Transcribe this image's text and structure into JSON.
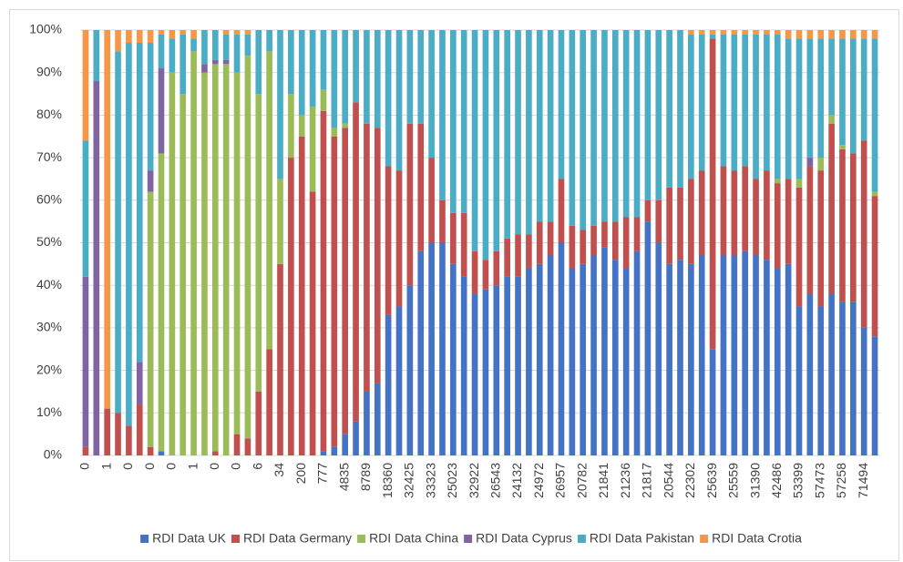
{
  "chart_data": {
    "type": "stacked_bar",
    "categories": [
      "0",
      null,
      "1",
      null,
      "0",
      null,
      "0",
      null,
      "0",
      null,
      "1",
      null,
      "0",
      null,
      "0",
      null,
      "6",
      null,
      "34",
      null,
      "200",
      null,
      "777",
      null,
      "4835",
      null,
      "8789",
      null,
      "18360",
      null,
      "32425",
      null,
      "33323",
      null,
      "25023",
      null,
      "32922",
      null,
      "26543",
      null,
      "24132",
      null,
      "24972",
      null,
      "26957",
      null,
      "20782",
      null,
      "21841",
      null,
      "21236",
      null,
      "21817",
      null,
      "20544",
      null,
      "22302",
      null,
      "25639",
      null,
      "25559",
      null,
      "31390",
      null,
      "42486",
      null,
      "53399",
      null,
      "57473",
      null,
      "57258",
      null,
      "71494",
      null
    ],
    "series": [
      {
        "name": "RDI Data UK",
        "color": "#4472c4",
        "values": [
          0,
          0,
          0,
          0,
          0,
          0,
          0,
          1,
          0,
          0,
          0,
          0,
          0,
          0,
          0,
          0,
          0,
          0,
          0,
          0,
          0,
          0,
          1,
          2,
          5,
          8,
          15,
          17,
          33,
          35,
          40,
          48,
          50,
          50,
          45,
          42,
          38,
          39,
          40,
          42,
          42,
          44,
          45,
          47,
          50,
          44,
          45,
          47,
          49,
          46,
          44,
          48,
          55,
          50,
          45,
          46,
          45,
          47,
          25,
          47,
          47,
          48,
          47,
          46,
          44,
          45,
          35,
          38,
          35,
          38,
          36,
          36,
          30,
          28
        ]
      },
      {
        "name": "RDI Data Germany",
        "color": "#c0504d",
        "values": [
          2,
          0,
          11,
          10,
          7,
          12,
          2,
          0,
          0,
          0,
          0,
          0,
          1,
          0,
          5,
          4,
          15,
          25,
          45,
          70,
          75,
          62,
          80,
          73,
          72,
          75,
          63,
          60,
          35,
          32,
          38,
          30,
          20,
          10,
          12,
          15,
          10,
          7,
          8,
          9,
          10,
          8,
          10,
          8,
          15,
          10,
          8,
          7,
          6,
          9,
          12,
          8,
          5,
          10,
          18,
          17,
          20,
          20,
          73,
          21,
          20,
          20,
          18,
          21,
          20,
          20,
          28,
          30,
          32,
          40,
          36,
          35,
          44,
          33
        ]
      },
      {
        "name": "RDI Data China",
        "color": "#9bbb59",
        "values": [
          0,
          0,
          0,
          0,
          0,
          0,
          60,
          70,
          90,
          85,
          95,
          90,
          91,
          92,
          85,
          90,
          70,
          70,
          20,
          15,
          5,
          20,
          5,
          2,
          1,
          0,
          0,
          0,
          0,
          0,
          0,
          0,
          0,
          0,
          0,
          0,
          0,
          0,
          0,
          0,
          0,
          0,
          0,
          0,
          0,
          0,
          0,
          0,
          0,
          0,
          0,
          0,
          0,
          0,
          0,
          0,
          0,
          0,
          0,
          0,
          0,
          0,
          0,
          0,
          1,
          0,
          2,
          0,
          3,
          2,
          1,
          0,
          0,
          1
        ]
      },
      {
        "name": "RDI Data Cyprus",
        "color": "#8064a2",
        "values": [
          40,
          88,
          0,
          0,
          0,
          10,
          5,
          20,
          0,
          0,
          0,
          2,
          1,
          1,
          0,
          0,
          0,
          0,
          0,
          0,
          0,
          0,
          0,
          0,
          0,
          0,
          0,
          0,
          0,
          0,
          0,
          0,
          0,
          0,
          0,
          0,
          0,
          0,
          0,
          0,
          0,
          0,
          0,
          0,
          0,
          0,
          0,
          0,
          0,
          0,
          0,
          0,
          0,
          0,
          0,
          0,
          0,
          0,
          0,
          0,
          0,
          0,
          0,
          0,
          0,
          0,
          0,
          2,
          0,
          0,
          0,
          0,
          0,
          0
        ]
      },
      {
        "name": "RDI Data Pakistan",
        "color": "#4bacc6",
        "values": [
          32,
          12,
          0,
          85,
          90,
          75,
          30,
          8,
          8,
          14,
          3,
          8,
          7,
          6,
          9,
          5,
          15,
          5,
          35,
          15,
          20,
          18,
          14,
          23,
          22,
          17,
          22,
          23,
          32,
          33,
          22,
          22,
          30,
          40,
          43,
          43,
          52,
          54,
          52,
          49,
          48,
          48,
          45,
          45,
          35,
          46,
          47,
          46,
          45,
          45,
          44,
          44,
          40,
          40,
          37,
          37,
          34,
          32,
          1,
          31,
          32,
          31,
          34,
          32,
          34,
          33,
          33,
          28,
          28,
          18,
          25,
          27,
          24,
          36
        ]
      },
      {
        "name": "RDI Data Crotia",
        "color": "#f79646",
        "values": [
          26,
          0,
          89,
          5,
          3,
          3,
          3,
          1,
          2,
          1,
          2,
          0,
          0,
          1,
          1,
          1,
          0,
          0,
          0,
          0,
          0,
          0,
          0,
          0,
          0,
          0,
          0,
          0,
          0,
          0,
          0,
          0,
          0,
          0,
          0,
          0,
          0,
          0,
          0,
          0,
          0,
          0,
          0,
          0,
          0,
          0,
          0,
          0,
          0,
          0,
          0,
          0,
          0,
          0,
          0,
          0,
          1,
          1,
          1,
          1,
          1,
          1,
          1,
          1,
          1,
          2,
          2,
          2,
          2,
          2,
          2,
          2,
          2,
          2
        ]
      }
    ],
    "ylim": [
      0,
      100
    ],
    "yticks": [
      {
        "value": 0,
        "label": "0%"
      },
      {
        "value": 10,
        "label": "10%"
      },
      {
        "value": 20,
        "label": "20%"
      },
      {
        "value": 30,
        "label": "30%"
      },
      {
        "value": 40,
        "label": "40%"
      },
      {
        "value": 50,
        "label": "50%"
      },
      {
        "value": 60,
        "label": "60%"
      },
      {
        "value": 70,
        "label": "70%"
      },
      {
        "value": 80,
        "label": "80%"
      },
      {
        "value": 90,
        "label": "90%"
      },
      {
        "value": 100,
        "label": "100%"
      }
    ],
    "grid": true,
    "legend": "bottom"
  }
}
